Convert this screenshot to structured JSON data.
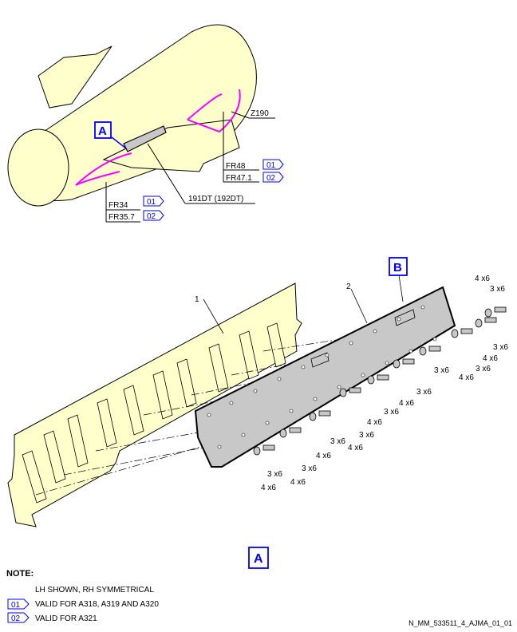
{
  "overview": {
    "zone_label": "Z190",
    "detail_letter": "A",
    "part_ref": "191DT (192DT)",
    "frames": [
      {
        "text": "FR48",
        "tag": "01"
      },
      {
        "text": "FR47.1",
        "tag": "02"
      },
      {
        "text": "FR34",
        "tag": "01"
      },
      {
        "text": "FR35.7",
        "tag": "02"
      }
    ]
  },
  "detail": {
    "item_1": "1",
    "item_2": "2",
    "view_letter": "B",
    "title_letter": "A",
    "fasteners_4x6": "4 x6",
    "fasteners_3x6": "3 x6"
  },
  "notes": {
    "title": "NOTE:",
    "lines": [
      {
        "tag": "",
        "text": "LH SHOWN, RH SYMMETRICAL"
      },
      {
        "tag": "01",
        "text": "VALID FOR A318, A319 AND A320"
      },
      {
        "tag": "02",
        "text": "VALID FOR A321"
      }
    ]
  },
  "footer_code": "N_MM_533511_4_AJMA_01_01",
  "colors": {
    "fill": "#ffffcc",
    "highlight": "#ff00ff",
    "accent": "#0000ff",
    "panel": "#c8c8c8"
  }
}
